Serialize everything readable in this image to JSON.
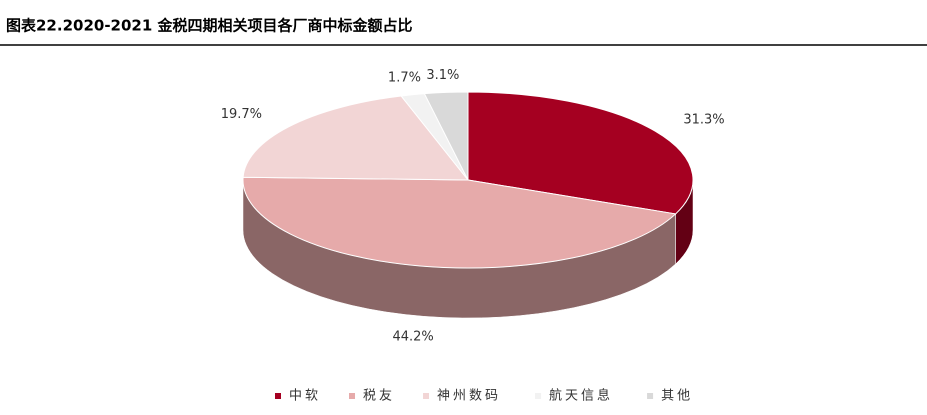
{
  "chart_data": {
    "type": "pie3d",
    "title": "图表22.2020-2021 金税四期相关项目各厂商中标金额占比",
    "categories": [
      "中软",
      "税友",
      "神州数码",
      "航天信息",
      "其他"
    ],
    "values": [
      31.3,
      44.2,
      19.7,
      1.7,
      3.1
    ],
    "value_labels": [
      "31.3%",
      "44.2%",
      "19.7%",
      "1.7%",
      "3.1%"
    ],
    "colors": [
      "#a50021",
      "#e6aaaa",
      "#f2d5d5",
      "#f2f2f2",
      "#d9d9d9"
    ],
    "legend": "bottom"
  }
}
